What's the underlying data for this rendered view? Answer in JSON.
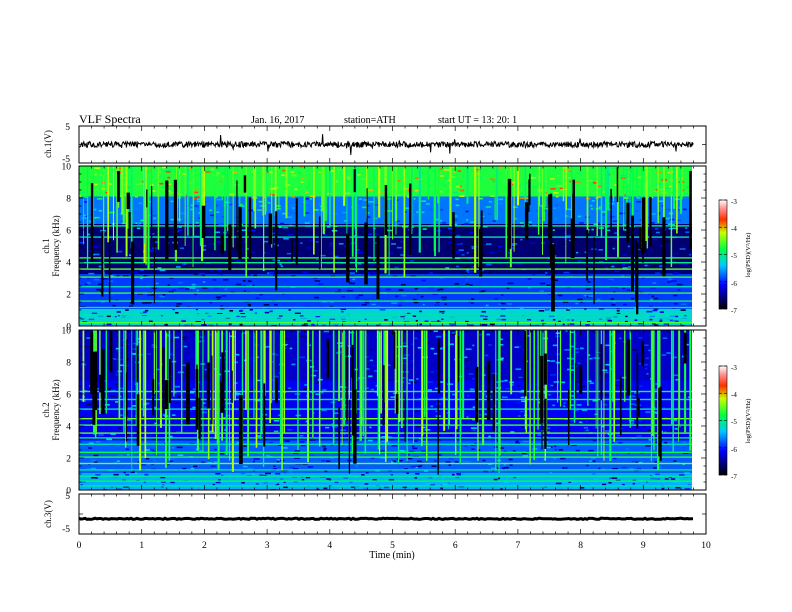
{
  "header": {
    "title": "VLF  Spectra",
    "date": "Jan. 16, 2017",
    "station": "station=ATH",
    "start": "start  UT  =   13: 20: 1"
  },
  "chart_data": [
    {
      "type": "line",
      "id": "ch1-waveform",
      "ylabel": "ch.1(V)",
      "ylim": [
        -5,
        5
      ],
      "yticks": [
        5,
        -5
      ],
      "xlim": [
        0,
        10
      ],
      "baseline": 0,
      "color": "#000000"
    },
    {
      "type": "heatmap",
      "id": "ch1-spectrogram",
      "ylabel": "ch.1\nFrequency  (kHz)",
      "ylabel_lines": [
        "ch.1",
        "Frequency  (kHz)"
      ],
      "ylim": [
        0,
        10
      ],
      "yticks": [
        0,
        2,
        4,
        6,
        8,
        10
      ],
      "xlim": [
        0,
        10
      ],
      "data_extent_min": 9.8,
      "colorbar": {
        "label": "log(PSD)(V²/Hz)",
        "range": [
          -7,
          -3
        ],
        "ticks": [
          -3,
          -4,
          -5,
          -6,
          -7
        ]
      }
    },
    {
      "type": "heatmap",
      "id": "ch2-spectrogram",
      "ylabel": "ch.2\nFrequency  (kHz)",
      "ylabel_lines": [
        "ch.2",
        "Frequency  (kHz)"
      ],
      "ylim": [
        0,
        10
      ],
      "yticks": [
        0,
        2,
        4,
        6,
        8,
        10
      ],
      "xlim": [
        0,
        10
      ],
      "data_extent_min": 9.8,
      "colorbar": {
        "label": "log(PSD)(V²/Hz)",
        "range": [
          -7,
          -3
        ],
        "ticks": [
          -3,
          -4,
          -5,
          -6,
          -7
        ]
      }
    },
    {
      "type": "line",
      "id": "ch3-waveform",
      "ylabel": "ch.3(V)",
      "ylim": [
        -5,
        5
      ],
      "yticks": [
        5,
        -5
      ],
      "xlim": [
        0,
        10
      ],
      "baseline": -1.2,
      "xlabel": "Time  (min)",
      "xticks": [
        0,
        1,
        2,
        3,
        4,
        5,
        6,
        7,
        8,
        9,
        10
      ],
      "color": "#000000"
    }
  ],
  "colorbar_labels": {
    "ch1": {
      "t3": "-3",
      "t4": "-4",
      "t5": "-5",
      "t6": "-6",
      "t7": "-7",
      "title": "log(PSD)(V²/Hz)"
    },
    "ch2": {
      "t3": "-3",
      "t4": "-4",
      "t5": "-5",
      "t6": "-6",
      "t7": "-7",
      "title": "log(PSD)(V²/Hz)"
    }
  },
  "axes_labels": {
    "ch1_v": "ch.1(V)",
    "ch3_v": "ch.3(V)",
    "ch1_freq_a": "ch.1",
    "ch1_freq_b": "Frequency  (kHz)",
    "ch2_freq_a": "ch.2",
    "ch2_freq_b": "Frequency  (kHz)",
    "time": "Time  (min)"
  },
  "tick_labels": {
    "v5": "5",
    "vm5": "-5",
    "f": [
      "0",
      "2",
      "4",
      "6",
      "8",
      "10"
    ],
    "t": [
      "0",
      "1",
      "2",
      "3",
      "4",
      "5",
      "6",
      "7",
      "8",
      "9",
      "10"
    ]
  }
}
